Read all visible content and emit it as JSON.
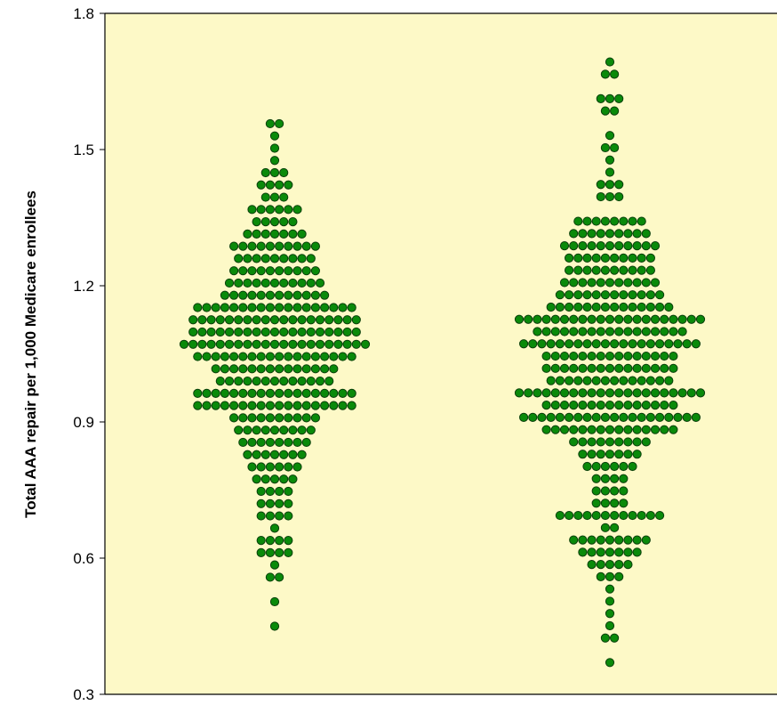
{
  "chart_data": {
    "type": "scatter",
    "subtype": "beeswarm",
    "title": "",
    "xlabel": "",
    "ylabel": "Total AAA repair per 1,000 Medicare enrollees",
    "ylim": [
      0.3,
      1.8
    ],
    "yticks": [
      "1.8",
      "1.5",
      "1.2",
      "0.9",
      "0.6",
      "0.3"
    ],
    "grid": false,
    "legend": "none",
    "colors": {
      "plot_background": "#fdf9c7",
      "point_fill": "#0a8a0a",
      "point_stroke": "#0b3f0b"
    },
    "series": [
      {
        "levels": [
          [
            1.557,
            2
          ],
          [
            1.53,
            1
          ],
          [
            1.503,
            1
          ],
          [
            1.476,
            1
          ],
          [
            1.449,
            3
          ],
          [
            1.422,
            4
          ],
          [
            1.395,
            3
          ],
          [
            1.368,
            6
          ],
          [
            1.341,
            5
          ],
          [
            1.314,
            7
          ],
          [
            1.287,
            10
          ],
          [
            1.26,
            9
          ],
          [
            1.233,
            10
          ],
          [
            1.206,
            11
          ],
          [
            1.179,
            12
          ],
          [
            1.152,
            18
          ],
          [
            1.125,
            19
          ],
          [
            1.098,
            19
          ],
          [
            1.071,
            21
          ],
          [
            1.044,
            18
          ],
          [
            1.017,
            14
          ],
          [
            0.99,
            13
          ],
          [
            0.963,
            18
          ],
          [
            0.936,
            18
          ],
          [
            0.909,
            10
          ],
          [
            0.882,
            9
          ],
          [
            0.855,
            8
          ],
          [
            0.828,
            7
          ],
          [
            0.801,
            6
          ],
          [
            0.774,
            5
          ],
          [
            0.747,
            4
          ],
          [
            0.72,
            4
          ],
          [
            0.693,
            4
          ],
          [
            0.666,
            1
          ],
          [
            0.639,
            4
          ],
          [
            0.612,
            4
          ],
          [
            0.585,
            1
          ],
          [
            0.558,
            2
          ],
          [
            0.504,
            1
          ],
          [
            0.45,
            1
          ]
        ]
      },
      {
        "levels": [
          [
            1.693,
            1
          ],
          [
            1.666,
            2
          ],
          [
            1.612,
            3
          ],
          [
            1.585,
            2
          ],
          [
            1.531,
            1
          ],
          [
            1.504,
            2
          ],
          [
            1.477,
            1
          ],
          [
            1.45,
            1
          ],
          [
            1.423,
            3
          ],
          [
            1.396,
            3
          ],
          [
            1.342,
            8
          ],
          [
            1.315,
            9
          ],
          [
            1.288,
            11
          ],
          [
            1.261,
            10
          ],
          [
            1.234,
            10
          ],
          [
            1.207,
            11
          ],
          [
            1.18,
            12
          ],
          [
            1.153,
            14
          ],
          [
            1.126,
            21
          ],
          [
            1.099,
            17
          ],
          [
            1.072,
            20
          ],
          [
            1.045,
            15
          ],
          [
            1.018,
            15
          ],
          [
            0.991,
            14
          ],
          [
            0.964,
            21
          ],
          [
            0.937,
            15
          ],
          [
            0.91,
            20
          ],
          [
            0.883,
            15
          ],
          [
            0.856,
            9
          ],
          [
            0.829,
            7
          ],
          [
            0.802,
            6
          ],
          [
            0.775,
            4
          ],
          [
            0.748,
            4
          ],
          [
            0.721,
            4
          ],
          [
            0.694,
            12
          ],
          [
            0.667,
            2
          ],
          [
            0.64,
            9
          ],
          [
            0.613,
            7
          ],
          [
            0.586,
            5
          ],
          [
            0.559,
            3
          ],
          [
            0.532,
            1
          ],
          [
            0.505,
            1
          ],
          [
            0.478,
            1
          ],
          [
            0.451,
            1
          ],
          [
            0.424,
            2
          ],
          [
            0.37,
            1
          ]
        ]
      }
    ]
  }
}
